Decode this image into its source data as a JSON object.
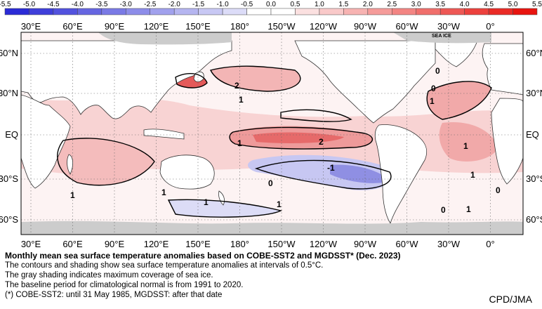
{
  "colorbar": {
    "ticks": [
      "-5.5",
      "-5.0",
      "-4.5",
      "-4.0",
      "-3.5",
      "-3.0",
      "-2.5",
      "-2.0",
      "-1.5",
      "-1.0",
      "-0.5",
      "0.0",
      "0.5",
      "1.0",
      "1.5",
      "2.0",
      "2.5",
      "3.0",
      "3.5",
      "4.0",
      "4.5",
      "5.0",
      "5.5"
    ]
  },
  "axes": {
    "lon_labels": [
      "30°E",
      "60°E",
      "90°E",
      "120°E",
      "150°E",
      "180°",
      "150°W",
      "120°W",
      "90°W",
      "60°W",
      "30°W",
      "0°"
    ],
    "lat_labels": [
      "60°N",
      "30°N",
      "EQ",
      "30°S",
      "60°S"
    ]
  },
  "map_labels": {
    "sea_ice": "SEA ICE",
    "contours": [
      "2",
      "1",
      "1",
      "2",
      "1",
      "-1",
      "0",
      "1",
      "1",
      "1",
      "0",
      "0",
      "1",
      "1",
      "0",
      "0",
      "1",
      "1"
    ]
  },
  "caption": {
    "title": "Monthly mean sea surface temperature anomalies based on COBE-SST2 and MGDSST* (Dec. 2023)",
    "lines": [
      "The contours and shading show sea surface temperature anomalies at intervals of 0.5°C.",
      "The gray shading indicates maximum coverage of sea ice.",
      "The baseline period for climatological normal is from 1991 to 2020.",
      "(*) COBE-SST2: until 31 May 1985, MGDSST: after that date"
    ]
  },
  "credit": "CPD/JMA",
  "colors": {
    "cold_strong": "#2b2bd6",
    "cold_weak": "#dcdcf8",
    "neutral": "#ffffff",
    "warm_weak": "#fbe0e0",
    "warm_strong": "#e8140f",
    "sea_ice": "#cccccc",
    "land": "#ffffff"
  }
}
